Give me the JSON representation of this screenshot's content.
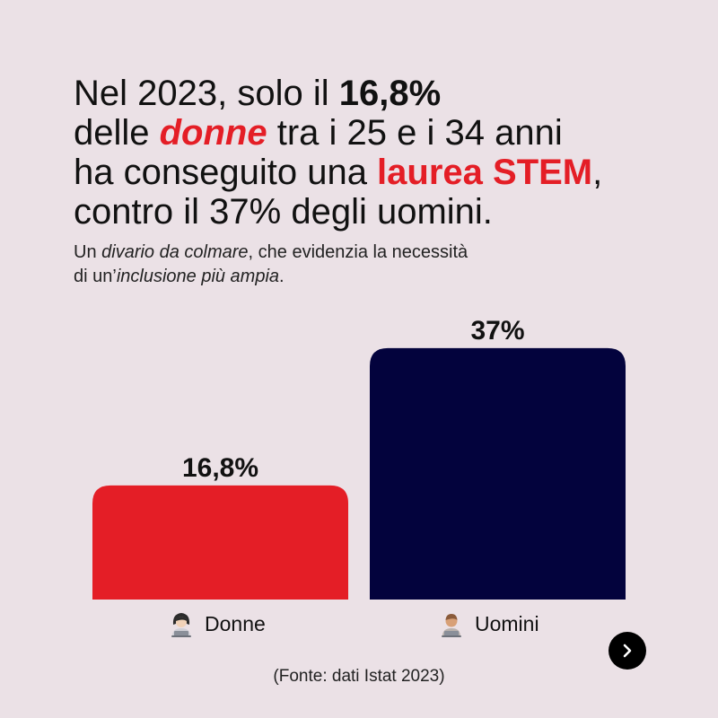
{
  "headline": {
    "l1_a": "Nel 2023, solo il ",
    "l1_b": "16,8%",
    "l2_a": "delle ",
    "l2_b": "donne",
    "l2_c": " tra i 25 e i 34 anni",
    "l3_a": "ha conseguito una ",
    "l3_b": "laurea STEM",
    "l3_c": ",",
    "l4": "contro il 37% degli uomini."
  },
  "subtitle": {
    "s1_a": "Un ",
    "s1_b": "divario da colmare",
    "s1_c": ", che evidenzia la necessità",
    "s2_a": "di un’",
    "s2_b": "inclusione più ampia",
    "s2_c": "."
  },
  "chart_data": {
    "type": "bar",
    "categories": [
      "Donne",
      "Uomini"
    ],
    "values": [
      16.8,
      37
    ],
    "value_labels": [
      "16,8%",
      "37%"
    ],
    "colors": [
      "#e41e26",
      "#03033d"
    ],
    "ylim": [
      0,
      40
    ],
    "grid": false,
    "title": "",
    "xlabel": "",
    "ylabel": ""
  },
  "icons": {
    "women": "woman-technologist-icon",
    "men": "man-technologist-icon",
    "next": "chevron-right-icon"
  },
  "source": "(Fonte: dati Istat 2023)"
}
